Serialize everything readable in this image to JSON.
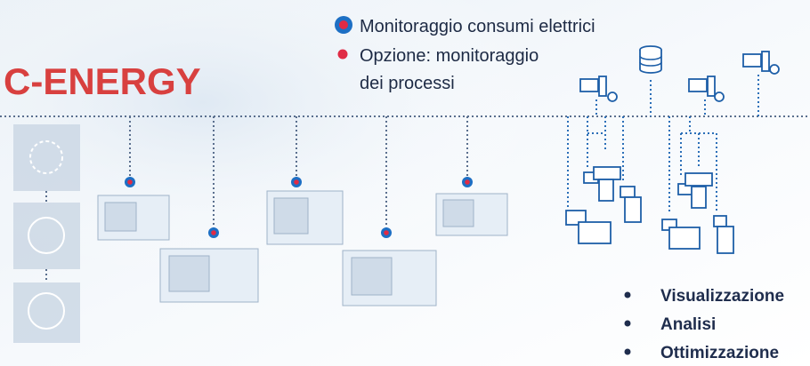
{
  "brand": "C-ENERGY",
  "legend": [
    {
      "label": "Monitoraggio consumi elettrici"
    },
    {
      "lines": [
        "Opzione: monitoraggio",
        "dei processi"
      ]
    }
  ],
  "benefits": [
    "Visualizzazione",
    "Analisi",
    "Ottimizzazione"
  ]
}
